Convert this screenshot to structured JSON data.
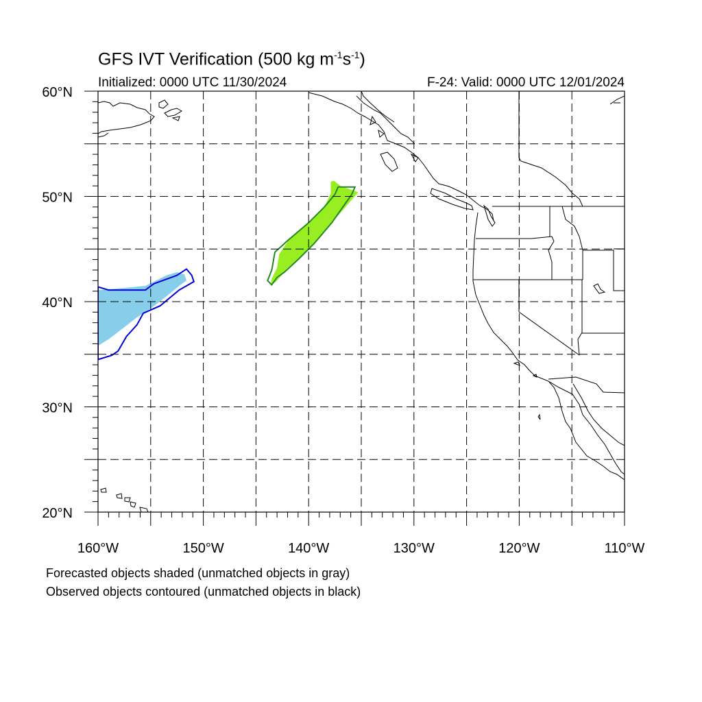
{
  "title": {
    "main": "GFS IVT Verification (500 kg m",
    "sup1": "-1",
    "mid": "s",
    "sup2": "-1",
    "end": ")"
  },
  "subtitle": {
    "initialized": "Initialized: 0000 UTC 11/30/2024",
    "valid": "F-24: Valid: 0000 UTC 12/01/2024"
  },
  "map": {
    "projection": "equirectangular",
    "lon_range": [
      -160,
      -110
    ],
    "lat_range": [
      20,
      60
    ],
    "lat_labels": [
      "60°N",
      "50°N",
      "40°N",
      "30°N",
      "20°N"
    ],
    "lon_labels": [
      "160°W",
      "150°W",
      "140°W",
      "130°W",
      "120°W",
      "110°W"
    ],
    "grid": "dashed every 5 degrees",
    "objects": [
      {
        "kind": "forecast-shaded",
        "color": "#87ceeb",
        "polygon": [
          [
            -160,
            41.1
          ],
          [
            -157.5,
            41.3
          ],
          [
            -155.5,
            41.5
          ],
          [
            -154.5,
            42.0
          ],
          [
            -153.5,
            42.5
          ],
          [
            -152.5,
            42.8
          ],
          [
            -151.8,
            42.6
          ],
          [
            -151.6,
            42.0
          ],
          [
            -152.3,
            41.5
          ],
          [
            -153.5,
            40.5
          ],
          [
            -154.8,
            39.5
          ],
          [
            -156.3,
            38.5
          ],
          [
            -157.6,
            37.5
          ],
          [
            -158.9,
            36.5
          ],
          [
            -160,
            35.8
          ]
        ]
      },
      {
        "kind": "observed-contour",
        "color": "#0000dd",
        "polygon": [
          [
            -160,
            41.4
          ],
          [
            -159,
            41.1
          ],
          [
            -157,
            41.1
          ],
          [
            -155.5,
            41.1
          ],
          [
            -154.7,
            41.7
          ],
          [
            -152.5,
            42.5
          ],
          [
            -151.6,
            43.1
          ],
          [
            -151.1,
            42.5
          ],
          [
            -150.9,
            41.9
          ],
          [
            -152.3,
            41.1
          ],
          [
            -154.1,
            39.6
          ],
          [
            -155.7,
            38.9
          ],
          [
            -156.3,
            37.8
          ],
          [
            -157.3,
            36.7
          ],
          [
            -158.1,
            35.3
          ],
          [
            -158.7,
            34.9
          ],
          [
            -160,
            34.5
          ]
        ]
      },
      {
        "kind": "forecast-shaded",
        "color": "#99ee22",
        "polygon": [
          [
            -137.6,
            51.5
          ],
          [
            -137.0,
            51.0
          ],
          [
            -135.3,
            50.4
          ],
          [
            -135.8,
            49.8
          ],
          [
            -137.8,
            47.5
          ],
          [
            -139.5,
            45.5
          ],
          [
            -140.8,
            44.2
          ],
          [
            -142.0,
            43.2
          ],
          [
            -143.0,
            42.0
          ],
          [
            -143.6,
            41.5
          ],
          [
            -143.5,
            42.2
          ],
          [
            -143.0,
            43.2
          ],
          [
            -142.8,
            44.5
          ],
          [
            -141.8,
            46.0
          ],
          [
            -140.0,
            47.5
          ],
          [
            -138.5,
            49.0
          ],
          [
            -137.9,
            50.3
          ],
          [
            -137.9,
            51.4
          ]
        ]
      },
      {
        "kind": "observed-contour",
        "color": "#228822",
        "polygon": [
          [
            -137.2,
            50.9
          ],
          [
            -135.6,
            50.9
          ],
          [
            -135.9,
            50.2
          ],
          [
            -137.8,
            47.5
          ],
          [
            -139.5,
            45.5
          ],
          [
            -141.0,
            44.0
          ],
          [
            -142.3,
            42.8
          ],
          [
            -143.0,
            42.3
          ],
          [
            -143.5,
            41.6
          ],
          [
            -143.9,
            42.0
          ],
          [
            -143.5,
            43.0
          ],
          [
            -143.2,
            44.7
          ],
          [
            -142.0,
            45.8
          ],
          [
            -140.0,
            47.5
          ],
          [
            -138.5,
            49.0
          ],
          [
            -137.5,
            50.2
          ],
          [
            -137.2,
            50.9
          ]
        ]
      }
    ]
  },
  "footer": {
    "line1": "Forecasted objects shaded (unmatched objects in gray)",
    "line2": "Observed objects contoured (unmatched objects in black)"
  }
}
